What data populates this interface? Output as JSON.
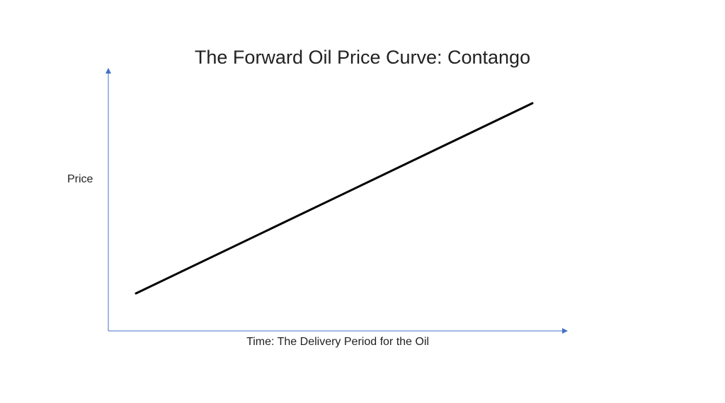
{
  "title": "The Forward Oil Price Curve: Contango",
  "chart_data": {
    "type": "line",
    "title": "The Forward Oil Price Curve: Contango",
    "xlabel": "Time: The Delivery Period for the Oil",
    "ylabel": "Price",
    "series": [
      {
        "x": [
          0,
          1
        ],
        "y": [
          0,
          1
        ]
      }
    ],
    "grid": false,
    "colors": {
      "axis": "#4472c4",
      "line": "#000000"
    }
  }
}
